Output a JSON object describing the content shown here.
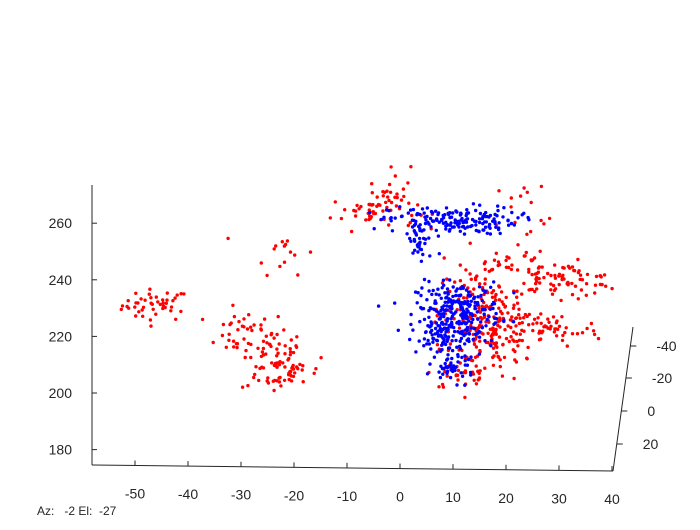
{
  "window": {
    "status_readout": "Az:   -2 El:  -27"
  },
  "chart_data": {
    "type": "scatter",
    "projection": "3d",
    "view": {
      "azimuth": -2,
      "elevation": -27
    },
    "x_ticks": [
      "-50",
      "-40",
      "-30",
      "-20",
      "-10",
      "0",
      "10",
      "20",
      "30",
      "40"
    ],
    "y_ticks": [
      "-40",
      "-20",
      "0",
      "20"
    ],
    "z_ticks": [
      "180",
      "200",
      "220",
      "240",
      "260"
    ],
    "xlim": [
      -58,
      40
    ],
    "zlim": [
      174,
      270
    ],
    "grid": false,
    "legend": "none",
    "colors": {
      "red_series": "#ff0000",
      "blue_series": "#0000ff",
      "axis": "#262626"
    },
    "series": [
      {
        "color": "#ff0000",
        "clusters": [
          {
            "cx": -46,
            "cz": 231,
            "sx": 3.2,
            "sz": 2.8,
            "n": 45
          },
          {
            "cx": -29,
            "cz": 221,
            "sx": 4.0,
            "sz": 4.0,
            "n": 40
          },
          {
            "cx": -24,
            "cz": 211,
            "sx": 3.0,
            "sz": 6.0,
            "n": 60
          },
          {
            "cx": -20,
            "cz": 208,
            "sx": 3.5,
            "sz": 3.0,
            "n": 25
          },
          {
            "cx": -22,
            "cz": 250,
            "sx": 3.0,
            "sz": 4.0,
            "n": 15
          },
          {
            "cx": -5,
            "cz": 264,
            "sx": 4.0,
            "sz": 3.0,
            "n": 50
          },
          {
            "cx": -1,
            "cz": 273,
            "sx": 1.5,
            "sz": 4.0,
            "n": 20
          },
          {
            "cx": 15,
            "cz": 230,
            "sx": 4.0,
            "sz": 7.0,
            "n": 120
          },
          {
            "cx": 18,
            "cz": 220,
            "sx": 4.0,
            "sz": 5.0,
            "n": 110
          },
          {
            "cx": 30,
            "cz": 240,
            "sx": 6.0,
            "sz": 3.0,
            "n": 90
          },
          {
            "cx": 28,
            "cz": 222,
            "sx": 5.0,
            "sz": 3.0,
            "n": 50
          },
          {
            "cx": 25,
            "cz": 265,
            "sx": 4.0,
            "sz": 6.0,
            "n": 15
          },
          {
            "cx": 13,
            "cz": 207,
            "sx": 4.0,
            "sz": 3.0,
            "n": 40
          },
          {
            "cx": 20,
            "cz": 247,
            "sx": 4.0,
            "sz": 3.0,
            "n": 25
          }
        ]
      },
      {
        "color": "#0000ff",
        "clusters": [
          {
            "cx": 10,
            "cz": 261,
            "sx": 6.0,
            "sz": 2.5,
            "n": 170
          },
          {
            "cx": 4,
            "cz": 253,
            "sx": 1.5,
            "sz": 4.0,
            "n": 35
          },
          {
            "cx": 11,
            "cz": 230,
            "sx": 4.0,
            "sz": 4.5,
            "n": 200
          },
          {
            "cx": 9,
            "cz": 220,
            "sx": 3.0,
            "sz": 4.5,
            "n": 120
          },
          {
            "cx": 10,
            "cz": 209,
            "sx": 2.0,
            "sz": 2.5,
            "n": 40
          }
        ]
      }
    ]
  }
}
